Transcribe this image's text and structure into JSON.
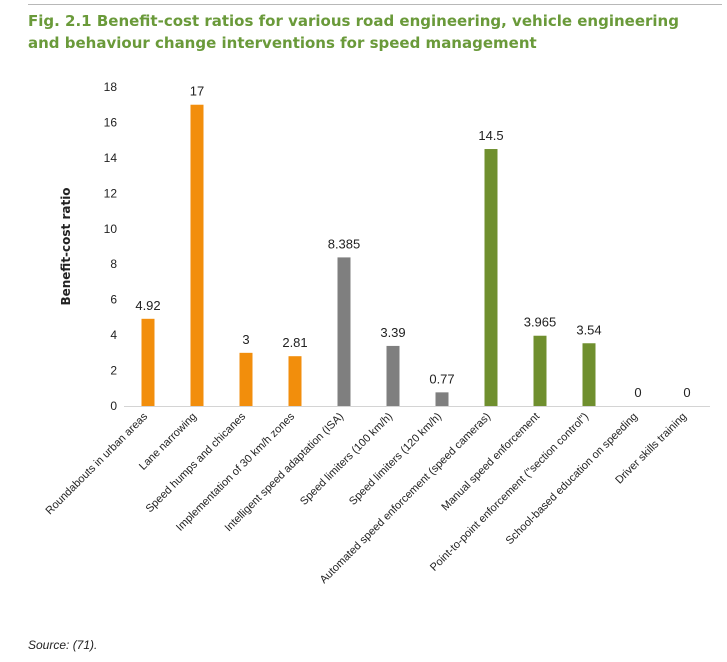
{
  "figure": {
    "title": "Fig. 2.1 Benefit-cost ratios for various road engineering, vehicle engineering and behaviour change interventions for speed management",
    "source": "Source: (71)."
  },
  "chart_data": {
    "type": "bar",
    "ylabel": "Benefit-cost ratio",
    "xlabel": "",
    "ylim": [
      0,
      18
    ],
    "yticks": [
      0,
      2,
      4,
      6,
      8,
      10,
      12,
      14,
      16,
      18
    ],
    "grid": false,
    "categories": [
      "Roundabouts in urban areas",
      "Lane narrowing",
      "Speed humps and chicanes",
      "Implementation of 30 km/h zones",
      "Intelligent speed adaptation (ISA)",
      "Speed limiters (100 km/h)",
      "Speed limiters (120 km/h)",
      "Automated speed enforcement (speed cameras)",
      "Manual speed enforcement",
      "Point-to-point enforcement (\"section control\")",
      "School-based education on speeding",
      "Driver skills training"
    ],
    "values": [
      4.92,
      17,
      3,
      2.81,
      8.385,
      3.39,
      0.77,
      14.5,
      3.965,
      3.54,
      0,
      0
    ],
    "value_labels": [
      "4.92",
      "17",
      "3",
      "2.81",
      "8.385",
      "3.39",
      "0.77",
      "14.5",
      "3.965",
      "3.54",
      "0",
      "0"
    ],
    "bar_colors": [
      "#f28e0c",
      "#f28e0c",
      "#f28e0c",
      "#f28e0c",
      "#7f7f7f",
      "#7f7f7f",
      "#7f7f7f",
      "#6f8f2e",
      "#6f8f2e",
      "#6f8f2e",
      "#6f8f2e",
      "#6f8f2e"
    ]
  }
}
